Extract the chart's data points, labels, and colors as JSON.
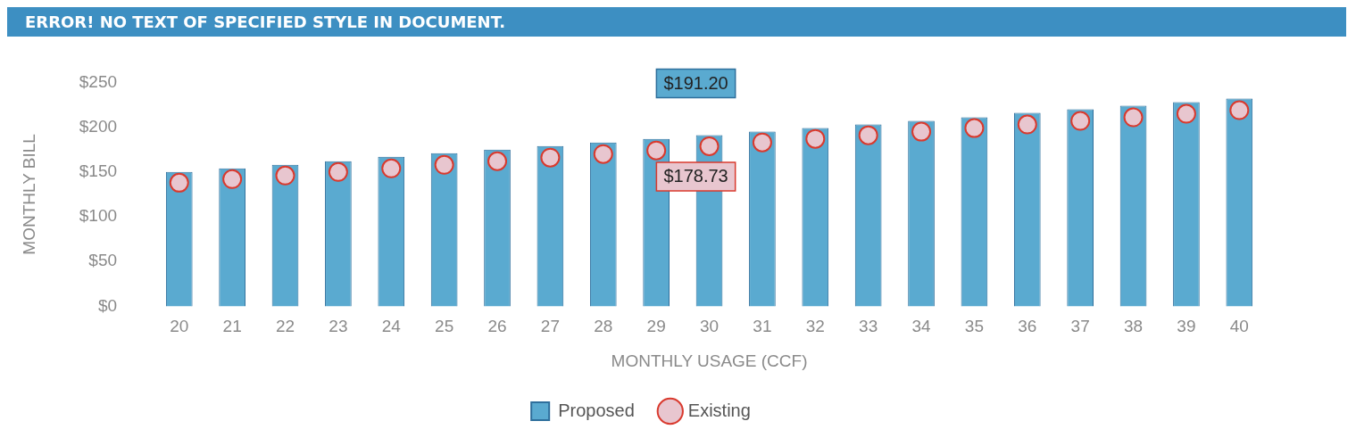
{
  "chart_data": {
    "type": "bar",
    "title": "ERROR! NO TEXT OF SPECIFIED STYLE IN DOCUMENT.",
    "xlabel": "MONTHLY USAGE (CCF)",
    "ylabel": "MONTHLY BILL",
    "categories": [
      "20",
      "21",
      "22",
      "23",
      "24",
      "25",
      "26",
      "27",
      "28",
      "29",
      "30",
      "31",
      "32",
      "33",
      "34",
      "35",
      "36",
      "37",
      "38",
      "39",
      "40"
    ],
    "series": [
      {
        "name": "Proposed",
        "color": "#5aaad0",
        "values": [
          150,
          154,
          158,
          162,
          167,
          171,
          175,
          179,
          183,
          187,
          191.2,
          195,
          199,
          203,
          207,
          211,
          216,
          220,
          224,
          228,
          232
        ],
        "value_labels": [
          null,
          null,
          null,
          null,
          null,
          null,
          null,
          null,
          null,
          null,
          "$191.20",
          null,
          null,
          null,
          null,
          null,
          null,
          null,
          null,
          null,
          null
        ]
      },
      {
        "name": "Existing",
        "type": "scatter",
        "color": "#e8c6cf",
        "x": [
          "20",
          "21",
          "22",
          "23",
          "24",
          "25",
          "26",
          "27",
          "28",
          "29",
          "30",
          "31",
          "32",
          "33",
          "34",
          "35",
          "36",
          "37",
          "38",
          "39",
          "40"
        ],
        "values": [
          138,
          142,
          146,
          150,
          154,
          158,
          162,
          166,
          170,
          174,
          178.73,
          183,
          187,
          191,
          195,
          199,
          203,
          207,
          211,
          215,
          219
        ],
        "value_labels": [
          null,
          null,
          null,
          null,
          null,
          null,
          null,
          null,
          null,
          null,
          "$178.73",
          null,
          null,
          null,
          null,
          null,
          null,
          null,
          null,
          null,
          null
        ]
      }
    ],
    "ylim": [
      0,
      250
    ],
    "yticks": [
      {
        "value": 0,
        "label": "$0"
      },
      {
        "value": 50,
        "label": "$50"
      },
      {
        "value": 100,
        "label": "$100"
      },
      {
        "value": 150,
        "label": "$150"
      },
      {
        "value": 200,
        "label": "$200"
      },
      {
        "value": 250,
        "label": "$250"
      }
    ],
    "grid": false,
    "legend": "bottom",
    "marker": "circle"
  }
}
